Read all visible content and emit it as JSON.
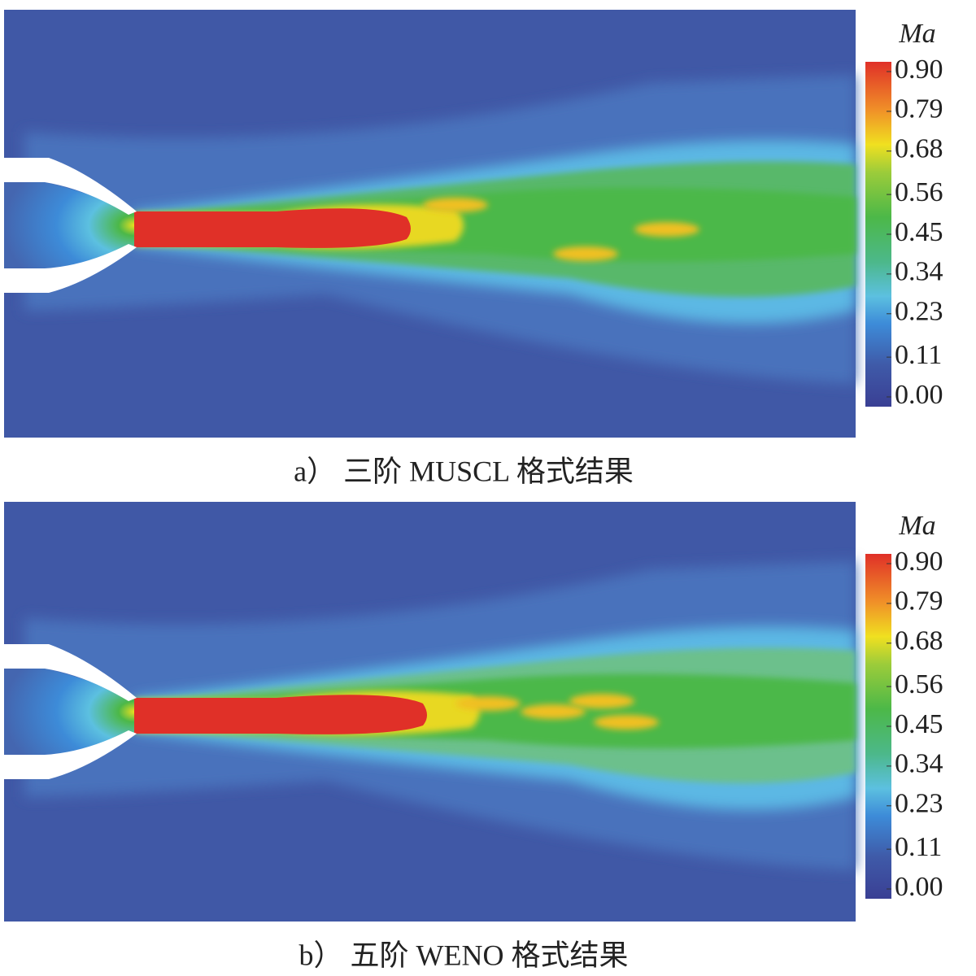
{
  "chart_data": [
    {
      "type": "heatmap",
      "caption": "a）  三阶 MUSCL 格式结果",
      "colorbar_label": "Ma",
      "clim": [
        0,
        0.9
      ],
      "cticks": [
        {
          "value": 0.9,
          "label": "0.90"
        },
        {
          "value": 0.79,
          "label": "0.79"
        },
        {
          "value": 0.68,
          "label": "0.68"
        },
        {
          "value": 0.56,
          "label": "0.56"
        },
        {
          "value": 0.45,
          "label": "0.45"
        },
        {
          "value": 0.34,
          "label": "0.34"
        },
        {
          "value": 0.23,
          "label": "0.23"
        },
        {
          "value": 0.11,
          "label": "0.11"
        },
        {
          "value": 0,
          "label": "0.00"
        }
      ]
    },
    {
      "type": "heatmap",
      "caption": "b）  五阶 WENO 格式结果",
      "colorbar_label": "Ma",
      "clim": [
        0,
        0.9
      ],
      "cticks": [
        {
          "value": 0.9,
          "label": "0.90"
        },
        {
          "value": 0.79,
          "label": "0.79"
        },
        {
          "value": 0.68,
          "label": "0.68"
        },
        {
          "value": 0.56,
          "label": "0.56"
        },
        {
          "value": 0.45,
          "label": "0.45"
        },
        {
          "value": 0.34,
          "label": "0.34"
        },
        {
          "value": 0.23,
          "label": "0.23"
        },
        {
          "value": 0.11,
          "label": "0.11"
        },
        {
          "value": 0,
          "label": "0.00"
        }
      ]
    }
  ]
}
